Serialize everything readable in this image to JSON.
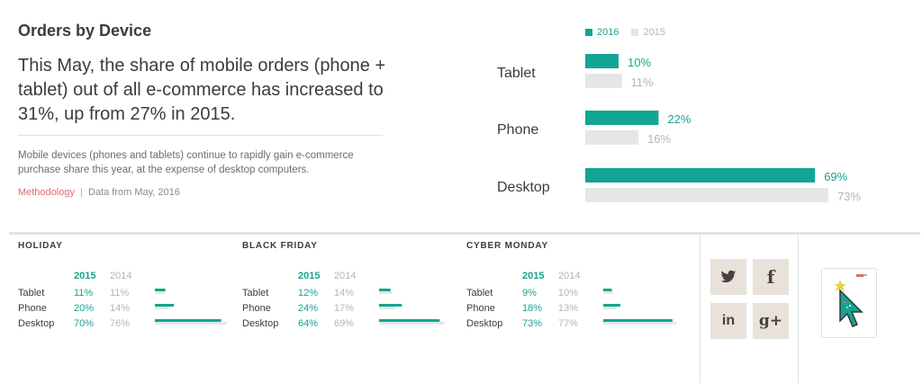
{
  "header": {
    "title": "Orders by Device",
    "headline": "This May, the share of mobile orders (phone + tablet) out of all e-commerce has increased to 31%, up from 27% in 2015.",
    "description": "Mobile devices (phones and tablets) continue to rapidly gain e-commerce purchase share this year, at the expense of desktop computers.",
    "methodology_link": "Methodology",
    "separator": "|",
    "source": "Data from May, 2016"
  },
  "colors": {
    "series_2016": "#12a594",
    "series_2015": "#e6e6e6",
    "label_2016": "#1aa391",
    "label_2015": "#b5b5b5",
    "accent_link": "#e06a72",
    "social_bg": "#e8e2da"
  },
  "chart_data": [
    {
      "type": "bar",
      "orientation": "horizontal",
      "title": "",
      "legend": [
        "2016",
        "2015"
      ],
      "categories": [
        "Tablet",
        "Phone",
        "Desktop"
      ],
      "series": [
        {
          "name": "2016",
          "values": [
            10,
            22,
            69
          ],
          "labels": [
            "10%",
            "22%",
            "69%"
          ]
        },
        {
          "name": "2015",
          "values": [
            11,
            16,
            73
          ],
          "labels": [
            "11%",
            "16%",
            "73%"
          ]
        }
      ],
      "xlim": [
        0,
        73
      ]
    },
    {
      "type": "bar",
      "title": "HOLIDAY",
      "header": [
        "2015",
        "2014"
      ],
      "categories": [
        "Tablet",
        "Phone",
        "Desktop"
      ],
      "series": [
        {
          "name": "2015",
          "values": [
            11,
            20,
            70
          ],
          "labels": [
            "11%",
            "20%",
            "70%"
          ]
        },
        {
          "name": "2014",
          "values": [
            11,
            14,
            76
          ],
          "labels": [
            "11%",
            "14%",
            "76%"
          ]
        }
      ]
    },
    {
      "type": "bar",
      "title": "BLACK FRIDAY",
      "header": [
        "2015",
        "2014"
      ],
      "categories": [
        "Tablet",
        "Phone",
        "Desktop"
      ],
      "series": [
        {
          "name": "2015",
          "values": [
            12,
            24,
            64
          ],
          "labels": [
            "12%",
            "24%",
            "64%"
          ]
        },
        {
          "name": "2014",
          "values": [
            14,
            17,
            69
          ],
          "labels": [
            "14%",
            "17%",
            "69%"
          ]
        }
      ]
    },
    {
      "type": "bar",
      "title": "CYBER MONDAY",
      "header": [
        "2015",
        "2014"
      ],
      "categories": [
        "Tablet",
        "Phone",
        "Desktop"
      ],
      "series": [
        {
          "name": "2015",
          "values": [
            9,
            18,
            73
          ],
          "labels": [
            "9%",
            "18%",
            "73%"
          ]
        },
        {
          "name": "2014",
          "values": [
            10,
            13,
            77
          ],
          "labels": [
            "10%",
            "13%",
            "77%"
          ]
        }
      ]
    }
  ],
  "social": {
    "buttons": [
      {
        "icon": "twitter-icon",
        "glyph": "🐦"
      },
      {
        "icon": "facebook-icon",
        "glyph": "f"
      },
      {
        "icon": "linkedin-icon",
        "glyph": "in"
      },
      {
        "icon": "google-plus-icon",
        "glyph": "g+"
      }
    ]
  }
}
